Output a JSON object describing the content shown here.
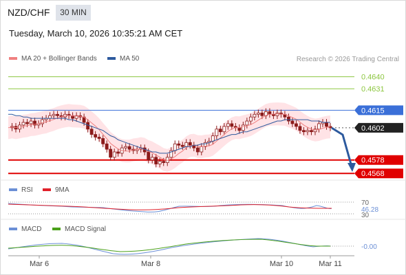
{
  "header": {
    "pair": "NZD/CHF",
    "timeframe": "30 MIN",
    "datetime": "Tuesday, March 10, 2026 10:35:21 AM CET"
  },
  "legend": {
    "ma20_label": "MA 20 + Bollinger Bands",
    "ma50_label": "MA 50",
    "credit": "Research © 2026 Trading Central",
    "rsi_label": "RSI",
    "rsi_ma_label": "9MA",
    "macd_label": "MACD",
    "macd_signal_label": "MACD Signal"
  },
  "colors": {
    "ma20": "#f08080",
    "ma50": "#2d5a9e",
    "bollinger_fill": "#ffd9dd",
    "candle": "#8b1a1a",
    "target_green": "#8cc63f",
    "pivot_blue": "#3a6fd8",
    "support_red": "#e00000",
    "rsi": "#6b8fd6",
    "rsi_ma": "#e0202a",
    "macd": "#6b8fd6",
    "macd_signal": "#4aa01a",
    "arrow": "#2d5a9e"
  },
  "levels": [
    {
      "value": 0.464,
      "label": "0.4640",
      "kind": "resistance"
    },
    {
      "value": 0.4631,
      "label": "0.4631",
      "kind": "resistance"
    },
    {
      "value": 0.4615,
      "label": "0.4615",
      "kind": "pivot"
    },
    {
      "value": 0.4602,
      "label": "0.4602",
      "kind": "last"
    },
    {
      "value": 0.4578,
      "label": "0.4578",
      "kind": "support"
    },
    {
      "value": 0.4568,
      "label": "0.4568",
      "kind": "support"
    }
  ],
  "rsi": {
    "upper": "70",
    "value": "46.28",
    "lower": "30"
  },
  "macd": {
    "value": "-0.00"
  },
  "x_axis": [
    "Mar 6",
    "Mar 8",
    "Mar 10",
    "Mar 11"
  ],
  "chart_data": {
    "type": "line",
    "ylim": [
      0.4563,
      0.4649
    ],
    "close": [
      0.4602,
      0.4603,
      0.4601,
      0.4604,
      0.4606,
      0.4605,
      0.4607,
      0.4604,
      0.4605,
      0.4608,
      0.4609,
      0.4611,
      0.4612,
      0.4611,
      0.461,
      0.4612,
      0.4611,
      0.4609,
      0.4611,
      0.461,
      0.4606,
      0.4601,
      0.4597,
      0.4595,
      0.4594,
      0.459,
      0.4586,
      0.458,
      0.4584,
      0.4583,
      0.4587,
      0.4588,
      0.4586,
      0.4585,
      0.4586,
      0.4587,
      0.4584,
      0.4578,
      0.458,
      0.4575,
      0.4577,
      0.4576,
      0.458,
      0.4585,
      0.459,
      0.4589,
      0.4588,
      0.4591,
      0.4589,
      0.4587,
      0.4584,
      0.4588,
      0.4591,
      0.4592,
      0.4596,
      0.4601,
      0.4599,
      0.4603,
      0.4605,
      0.4603,
      0.4602,
      0.46,
      0.4604,
      0.4607,
      0.461,
      0.4612,
      0.4613,
      0.4611,
      0.4614,
      0.4612,
      0.4611,
      0.4613,
      0.4612,
      0.461,
      0.4607,
      0.4605,
      0.4603,
      0.46,
      0.4599,
      0.46,
      0.4599,
      0.4601,
      0.4605,
      0.4606,
      0.4603,
      0.4602
    ],
    "ma50": [
      0.4612,
      0.4612,
      0.4611,
      0.4611,
      0.461,
      0.461,
      0.4609,
      0.4609,
      0.4609,
      0.4609,
      0.4609,
      0.4609,
      0.4609,
      0.4609,
      0.4609,
      0.4609,
      0.4608,
      0.4608,
      0.4607,
      0.4606,
      0.4605,
      0.4604,
      0.4603,
      0.4602,
      0.4601,
      0.46,
      0.4598,
      0.4596,
      0.4595,
      0.4593,
      0.4592,
      0.4591,
      0.459,
      0.4589,
      0.4588,
      0.4587,
      0.4586,
      0.4585,
      0.4584,
      0.4584,
      0.4583,
      0.4583,
      0.4583,
      0.4584,
      0.4585,
      0.4586,
      0.4587,
      0.4588,
      0.4588,
      0.4589,
      0.4589,
      0.459,
      0.459,
      0.4591,
      0.4592,
      0.4593,
      0.4594,
      0.4595,
      0.4596,
      0.4597,
      0.4597,
      0.4598,
      0.4599,
      0.4599,
      0.46,
      0.4601,
      0.4602,
      0.4603,
      0.4604,
      0.4605,
      0.4606,
      0.4607,
      0.4607,
      0.4608,
      0.4608,
      0.4608,
      0.4608,
      0.4608,
      0.4608,
      0.4608,
      0.4607,
      0.4607,
      0.4607,
      0.4606,
      0.4606,
      0.4606
    ]
  }
}
